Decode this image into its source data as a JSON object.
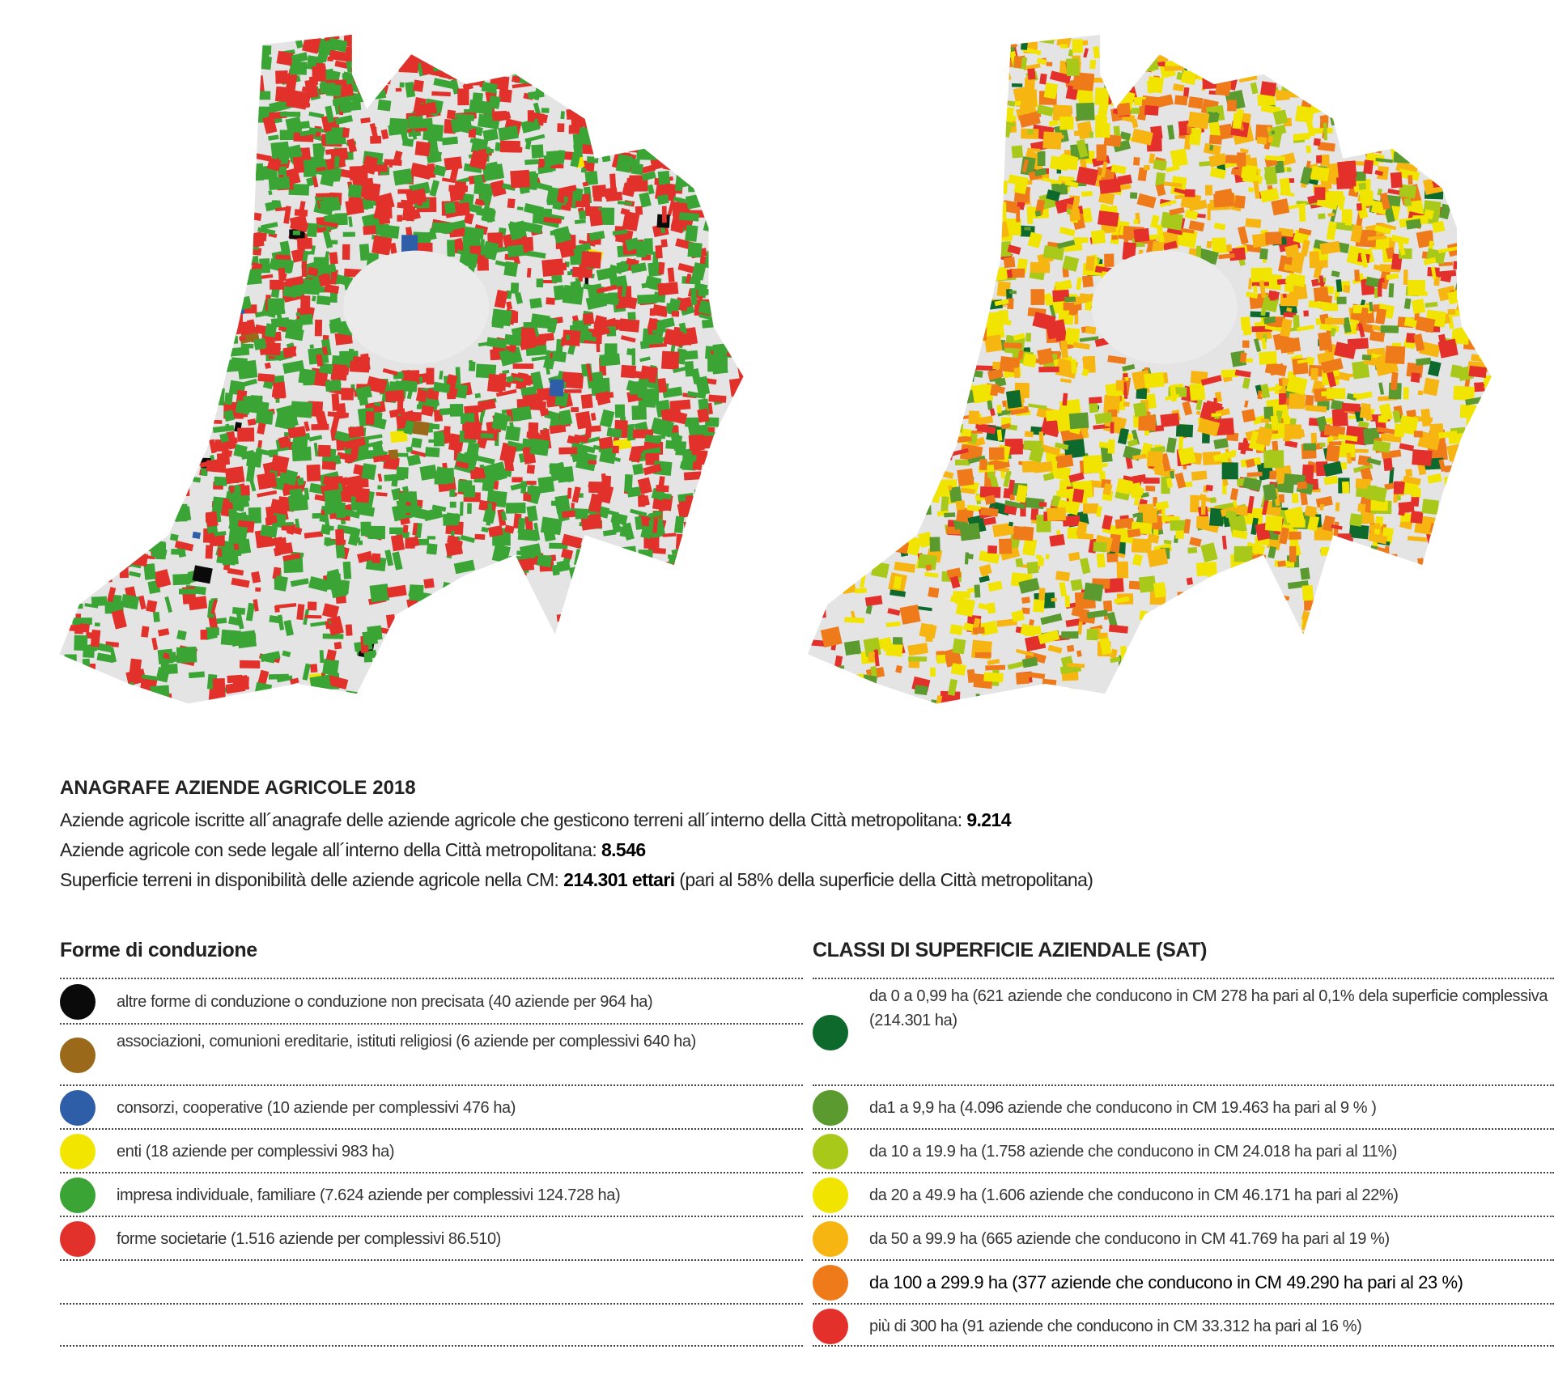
{
  "header": {
    "title": "ANAGRAFE AZIENDE AGRICOLE 2018"
  },
  "stats": [
    {
      "text": "Aziende agricole iscritte all´anagrafe delle aziende agricole che gesticono terreni all´interno della Città metropolitana: ",
      "value": "9.214"
    },
    {
      "text": "Aziende agricole con sede legale all´interno della Città metropolitana: ",
      "value": "8.546"
    },
    {
      "text": "Superficie terreni in disponibilità delle aziende agricole nella CM: ",
      "value": "214.301 ettari",
      "after": " (pari al 58% della superficie della Città metropolitana)"
    }
  ],
  "legends": [
    {
      "title": "Forme di conduzione",
      "items": [
        {
          "color": "#0a0a0a",
          "label": "altre forme di conduzione o conduzione non precisata (40 aziende per 964 ha)"
        },
        {
          "color": "#9a6a1a",
          "label": "associazioni, comunioni ereditarie, istituti religiosi (6 aziende per complessivi 640 ha)"
        },
        {
          "color": "#2f5ea8",
          "label": "consorzi, cooperative (10 aziende per complessivi 476 ha)"
        },
        {
          "color": "#f2e600",
          "label": "enti (18 aziende per complessivi 983 ha)"
        },
        {
          "color": "#3aa435",
          "label": "impresa individuale, familiare (7.624 aziende per complessivi 124.728 ha)"
        },
        {
          "color": "#e2302a",
          "label": "forme societarie (1.516 aziende per complessivi 86.510)"
        }
      ]
    },
    {
      "title": "CLASSI DI SUPERFICIE AZIENDALE (SAT)",
      "items": [
        {
          "color": "#0d6a2c",
          "label": "da 0 a 0,99 ha (621 aziende che conducono in CM 278 ha pari al 0,1% dela superficie complessiva (214.301 ha)"
        },
        {
          "color": "#5a9a2e",
          "label": "da1 a 9,9 ha (4.096 aziende che conducono in CM 19.463 ha pari al 9 % )"
        },
        {
          "color": "#a9c91a",
          "label": "da 10 a 19.9  ha (1.758 aziende che conducono in CM 24.018 ha pari al 11%)"
        },
        {
          "color": "#f0e400",
          "label": "da 20 a 49.9  ha (1.606 aziende che conducono in CM 46.171 ha pari al 22%)"
        },
        {
          "color": "#f6b510",
          "label": "da 50 a 99.9  ha (665 aziende che conducono in CM 41.769 ha pari al 19 %)"
        },
        {
          "color": "#ef7a1a",
          "label": "da 100 a 299.9  ha (377 aziende che conducono in CM 49.290 ha pari al 23 %)"
        },
        {
          "color": "#e3302a",
          "label": "più di 300 ha (91 aziende che conducono in CM 33.312 ha pari al 16 %)"
        }
      ]
    }
  ]
}
